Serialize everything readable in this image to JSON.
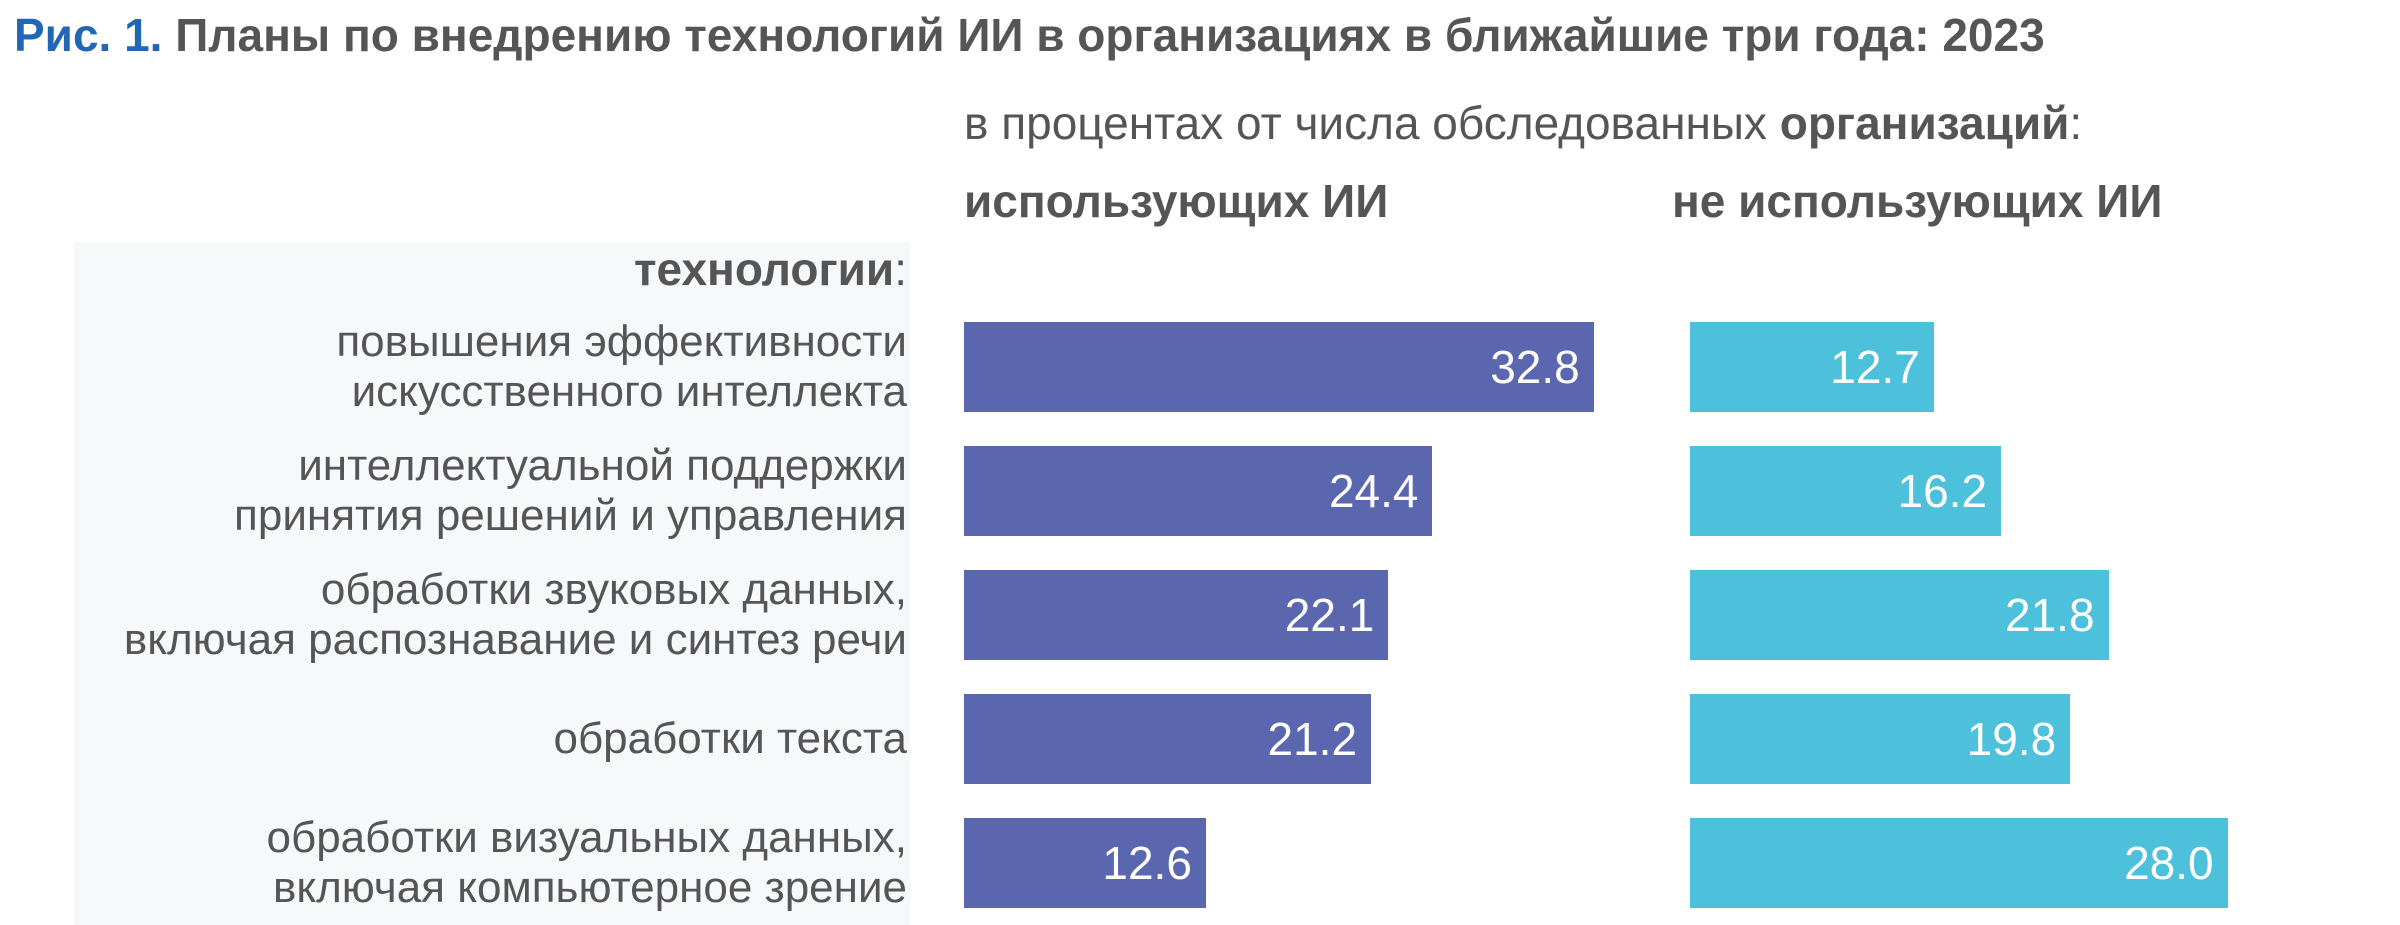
{
  "title": {
    "fig": "Рис. 1.",
    "text": " Планы по внедрению технологий ИИ в организациях в ближайшие три года: 2023"
  },
  "subtitle": {
    "prefix": "в процентах от числа обследованных ",
    "bold": "организаций",
    "suffix": ":"
  },
  "chart_data": {
    "type": "bar",
    "orientation": "horizontal",
    "axis_header": {
      "bold": "технологии",
      "suffix": ":"
    },
    "categories": [
      [
        "повышения эффективности",
        "искусственного интеллекта"
      ],
      [
        "интеллектуальной поддержки",
        "принятия решений и управления"
      ],
      [
        "обработки звуковых данных,",
        "включая распознавание и синтез речи"
      ],
      [
        "обработки текста"
      ],
      [
        "обработки визуальных данных,",
        "включая компьютерное зрение"
      ]
    ],
    "series": [
      {
        "name": "использующих ИИ",
        "color": "#5a67af",
        "values": [
          32.8,
          24.4,
          22.1,
          21.2,
          12.6
        ]
      },
      {
        "name": "не использующих ИИ",
        "color": "#4dc0dc",
        "values": [
          12.7,
          16.2,
          21.8,
          19.8,
          28.0
        ]
      }
    ],
    "grid": false,
    "legend": "none"
  }
}
